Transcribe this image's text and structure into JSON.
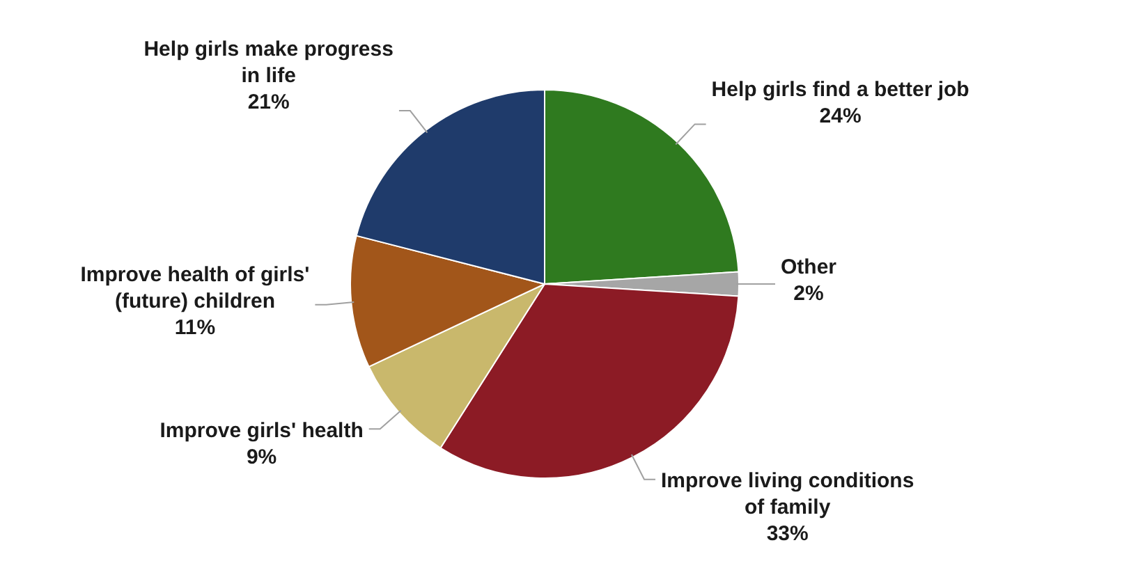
{
  "chart_data": {
    "type": "pie",
    "categories": [
      "Help girls find a better job",
      "Other",
      "Improve living conditions of family",
      "Improve girls' health",
      "Improve health of girls' (future) children",
      "Help girls make progress in life"
    ],
    "values": [
      24,
      2,
      33,
      9,
      11,
      21
    ],
    "value_labels": [
      "24%",
      "2%",
      "33%",
      "9%",
      "11%",
      "21%"
    ],
    "colors": [
      "#2f7a1f",
      "#a6a6a6",
      "#8c1b25",
      "#c9b86c",
      "#a2561a",
      "#1f3b6b"
    ],
    "legend": false
  }
}
